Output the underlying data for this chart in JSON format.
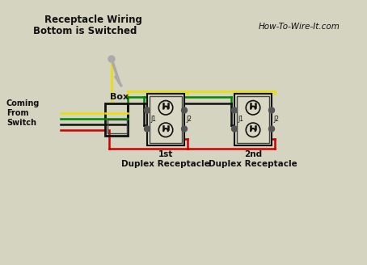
{
  "title1": "Receptacle Wiring",
  "title2": "Bottom is Switched",
  "watermark": "How-To-Wire-It.com",
  "label_switch": "Coming\nFrom\nSwitch",
  "label_box": "Box",
  "label_1st": "1st\nDuplex Receptacle",
  "label_2nd": "2nd\nDuplex Receptacle",
  "bg_color": "#d4d4c0",
  "wire_yellow": "#e8e000",
  "wire_green": "#008800",
  "wire_black": "#111111",
  "wire_red": "#cc0000",
  "text_color": "#111111"
}
